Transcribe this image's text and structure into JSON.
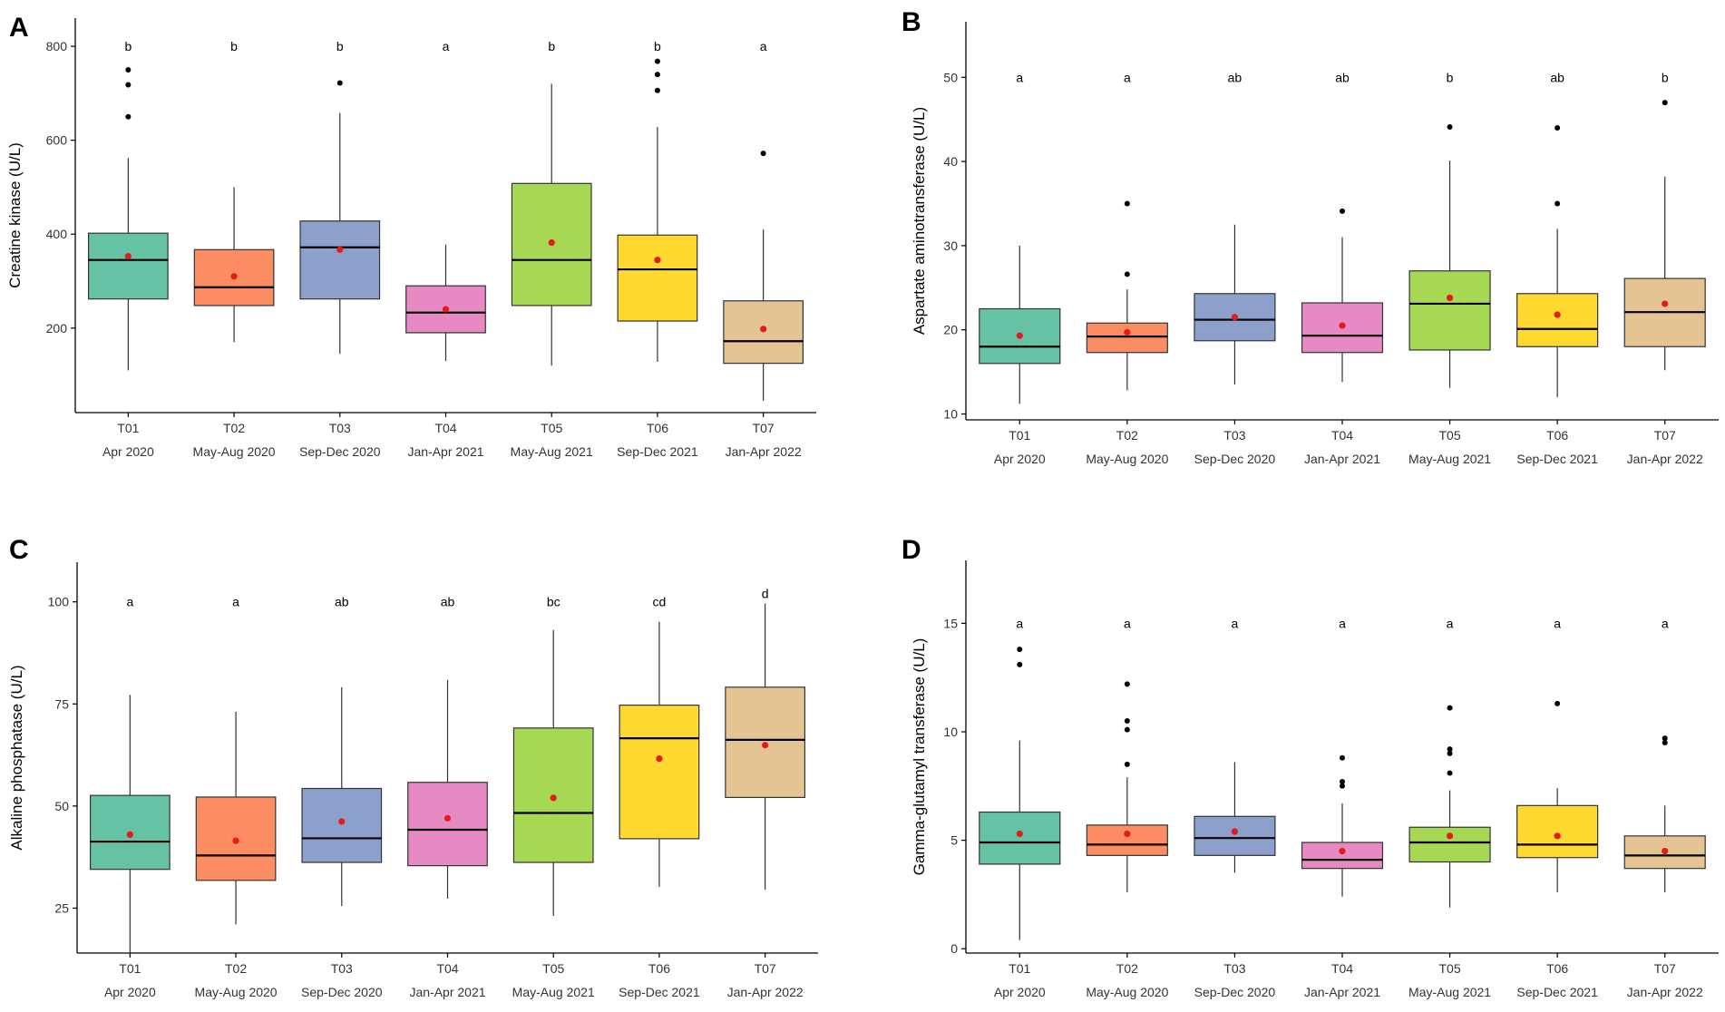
{
  "chart_data": [
    {
      "panel": "A",
      "type": "boxplot",
      "ylabel": "Creatine kinase (U/L)",
      "ylim": [
        20,
        860
      ],
      "yticks": [
        200,
        400,
        600,
        800
      ],
      "ytick_labels": [
        "200",
        "400",
        "600",
        "800"
      ],
      "categories": [
        "T01",
        "T02",
        "T03",
        "T04",
        "T05",
        "T06",
        "T07"
      ],
      "periods": [
        "Apr 2020",
        "May-Aug 2020",
        "Sep-Dec 2020",
        "Jan-Apr 2021",
        "May-Aug 2021",
        "Sep-Dec 2021",
        "Jan-Apr 2022"
      ],
      "letters": [
        "b",
        "b",
        "b",
        "a",
        "b",
        "b",
        "a"
      ],
      "letter_y": [
        800,
        800,
        800,
        800,
        800,
        800,
        800
      ],
      "boxes": [
        {
          "min": 110,
          "q1": 262,
          "median": 345,
          "q3": 402,
          "max": 562,
          "mean": 353,
          "outliers": [
            650,
            718,
            750
          ]
        },
        {
          "min": 170,
          "q1": 248,
          "median": 287,
          "q3": 367,
          "max": 500,
          "mean": 310,
          "outliers": []
        },
        {
          "min": 145,
          "q1": 262,
          "median": 372,
          "q3": 428,
          "max": 658,
          "mean": 367,
          "outliers": [
            722
          ]
        },
        {
          "min": 130,
          "q1": 190,
          "median": 233,
          "q3": 290,
          "max": 378,
          "mean": 240,
          "outliers": []
        },
        {
          "min": 120,
          "q1": 248,
          "median": 345,
          "q3": 508,
          "max": 720,
          "mean": 382,
          "outliers": []
        },
        {
          "min": 128,
          "q1": 215,
          "median": 325,
          "q3": 398,
          "max": 628,
          "mean": 345,
          "outliers": [
            706,
            740,
            768
          ]
        },
        {
          "min": 45,
          "q1": 125,
          "median": 172,
          "q3": 258,
          "max": 410,
          "mean": 198,
          "outliers": [
            572
          ]
        }
      ]
    },
    {
      "panel": "B",
      "type": "boxplot",
      "ylabel": "Aspartate aminotransferase (U/L)",
      "ylim": [
        9.3,
        56.6
      ],
      "yticks": [
        10,
        20,
        30,
        40,
        50
      ],
      "ytick_labels": [
        "10",
        "20",
        "30",
        "40",
        "50"
      ],
      "categories": [
        "T01",
        "T02",
        "T03",
        "T04",
        "T05",
        "T06",
        "T07"
      ],
      "periods": [
        "Apr 2020",
        "May-Aug 2020",
        "Sep-Dec 2020",
        "Jan-Apr 2021",
        "May-Aug 2021",
        "Sep-Dec 2021",
        "Jan-Apr 2022"
      ],
      "letters": [
        "a",
        "a",
        "ab",
        "ab",
        "b",
        "ab",
        "b"
      ],
      "letter_y": [
        50,
        50,
        50,
        50,
        50,
        50,
        50
      ],
      "boxes": [
        {
          "min": 11.2,
          "q1": 16.0,
          "median": 18.0,
          "q3": 22.5,
          "max": 30.0,
          "mean": 19.3,
          "outliers": []
        },
        {
          "min": 12.8,
          "q1": 17.3,
          "median": 19.2,
          "q3": 20.8,
          "max": 24.8,
          "mean": 19.7,
          "outliers": [
            26.6,
            35.0
          ]
        },
        {
          "min": 13.5,
          "q1": 18.7,
          "median": 21.2,
          "q3": 24.3,
          "max": 32.5,
          "mean": 21.5,
          "outliers": []
        },
        {
          "min": 13.8,
          "q1": 17.3,
          "median": 19.3,
          "q3": 23.2,
          "max": 31.0,
          "mean": 20.5,
          "outliers": [
            34.1
          ]
        },
        {
          "min": 13.1,
          "q1": 17.6,
          "median": 23.1,
          "q3": 27.0,
          "max": 40.1,
          "mean": 23.8,
          "outliers": [
            44.1
          ]
        },
        {
          "min": 12.0,
          "q1": 18.0,
          "median": 20.1,
          "q3": 24.3,
          "max": 32.0,
          "mean": 21.8,
          "outliers": [
            35.0,
            44.0
          ]
        },
        {
          "min": 15.2,
          "q1": 18.0,
          "median": 22.1,
          "q3": 26.1,
          "max": 38.2,
          "mean": 23.1,
          "outliers": [
            47.0
          ]
        }
      ]
    },
    {
      "panel": "C",
      "type": "boxplot",
      "ylabel": "Alkaline phosphatase (U/L)",
      "ylim": [
        14.0,
        109.7
      ],
      "yticks": [
        25,
        50,
        75,
        100
      ],
      "ytick_labels": [
        "25",
        "50",
        "75",
        "100"
      ],
      "categories": [
        "T01",
        "T02",
        "T03",
        "T04",
        "T05",
        "T06",
        "T07"
      ],
      "periods": [
        "Apr 2020",
        "May-Aug 2020",
        "Sep-Dec 2020",
        "Jan-Apr 2021",
        "May-Aug 2021",
        "Sep-Dec 2021",
        "Jan-Apr 2022"
      ],
      "letters": [
        "a",
        "a",
        "ab",
        "ab",
        "bc",
        "cd",
        "d"
      ],
      "letter_y": [
        100,
        100,
        100,
        100,
        100,
        100,
        102
      ],
      "boxes": [
        {
          "min": 14.0,
          "q1": 34.5,
          "median": 41.3,
          "q3": 52.6,
          "max": 77.2,
          "mean": 43.0,
          "outliers": []
        },
        {
          "min": 21.0,
          "q1": 31.8,
          "median": 37.9,
          "q3": 52.2,
          "max": 73.1,
          "mean": 41.5,
          "outliers": []
        },
        {
          "min": 25.5,
          "q1": 36.2,
          "median": 42.1,
          "q3": 54.3,
          "max": 79.1,
          "mean": 46.2,
          "outliers": []
        },
        {
          "min": 27.3,
          "q1": 35.4,
          "median": 44.2,
          "q3": 55.8,
          "max": 80.9,
          "mean": 47.0,
          "outliers": []
        },
        {
          "min": 23.1,
          "q1": 36.2,
          "median": 48.3,
          "q3": 69.1,
          "max": 93.1,
          "mean": 52.0,
          "outliers": []
        },
        {
          "min": 30.2,
          "q1": 42.0,
          "median": 66.6,
          "q3": 74.7,
          "max": 95.1,
          "mean": 61.6,
          "outliers": []
        },
        {
          "min": 29.5,
          "q1": 52.1,
          "median": 66.2,
          "q3": 79.1,
          "max": 99.6,
          "mean": 64.9,
          "outliers": []
        }
      ]
    },
    {
      "panel": "D",
      "type": "boxplot",
      "ylabel": "Gamma-glutamyl transferase (U/L)",
      "ylim": [
        -0.2,
        17.9
      ],
      "yticks": [
        0,
        5,
        10,
        15
      ],
      "ytick_labels": [
        "0",
        "5",
        "10",
        "15"
      ],
      "categories": [
        "T01",
        "T02",
        "T03",
        "T04",
        "T05",
        "T06",
        "T07"
      ],
      "periods": [
        "Apr 2020",
        "May-Aug 2020",
        "Sep-Dec 2020",
        "Jan-Apr 2021",
        "May-Aug 2021",
        "Sep-Dec 2021",
        "Jan-Apr 2022"
      ],
      "letters": [
        "a",
        "a",
        "a",
        "a",
        "a",
        "a",
        "a"
      ],
      "letter_y": [
        15,
        15,
        15,
        15,
        15,
        15,
        15
      ],
      "boxes": [
        {
          "min": 0.4,
          "q1": 3.9,
          "median": 4.9,
          "q3": 6.3,
          "max": 9.6,
          "mean": 5.3,
          "outliers": [
            13.1,
            13.8
          ]
        },
        {
          "min": 2.6,
          "q1": 4.3,
          "median": 4.8,
          "q3": 5.7,
          "max": 7.9,
          "mean": 5.3,
          "outliers": [
            8.5,
            10.1,
            10.5,
            12.2
          ]
        },
        {
          "min": 3.5,
          "q1": 4.3,
          "median": 5.1,
          "q3": 6.1,
          "max": 8.6,
          "mean": 5.4,
          "outliers": []
        },
        {
          "min": 2.4,
          "q1": 3.7,
          "median": 4.1,
          "q3": 4.9,
          "max": 6.7,
          "mean": 4.5,
          "outliers": [
            7.5,
            7.7,
            8.8
          ]
        },
        {
          "min": 1.9,
          "q1": 4.0,
          "median": 4.9,
          "q3": 5.6,
          "max": 7.3,
          "mean": 5.2,
          "outliers": [
            8.1,
            9.0,
            9.2,
            11.1
          ]
        },
        {
          "min": 2.6,
          "q1": 4.2,
          "median": 4.8,
          "q3": 6.6,
          "max": 7.4,
          "mean": 5.2,
          "outliers": [
            11.3
          ]
        },
        {
          "min": 2.6,
          "q1": 3.7,
          "median": 4.3,
          "q3": 5.2,
          "max": 6.6,
          "mean": 4.5,
          "outliers": [
            9.5,
            9.7
          ]
        }
      ]
    }
  ],
  "colors": {
    "boxes": [
      "#66c2a5",
      "#fc8d62",
      "#8da0cb",
      "#e78ac3",
      "#a6d854",
      "#ffd92f",
      "#e5c494"
    ],
    "mean_marker": "#e41a1c",
    "outlier": "#000000",
    "axis": "#000000"
  }
}
